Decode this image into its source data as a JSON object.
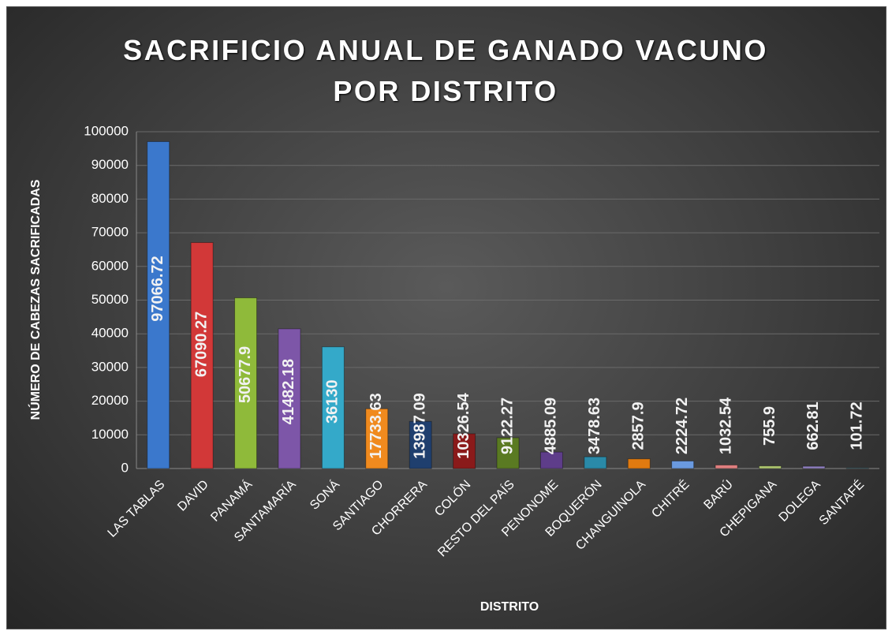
{
  "chart_data": {
    "type": "bar",
    "title": "SACRIFICIO ANUAL DE GANADO VACUNO POR DISTRITO",
    "xlabel": "DISTRITO",
    "ylabel": "NÚMERO DE CABEZAS SACRIFICADAS",
    "categories": [
      "LAS TABLAS",
      "DAVID",
      "PANAMÁ",
      "SANTAMARÍA",
      "SONÁ",
      "SANTIAGO",
      "CHORRERA",
      "COLÓN",
      "RESTO DEL PAÍS",
      "PENONOME",
      "BOQUERÓN",
      "CHANGUINOLA",
      "CHITRÉ",
      "BARÚ",
      "CHEPIGANA",
      "DOLEGA",
      "SANTAFÉ"
    ],
    "values": [
      97066.72,
      67090.27,
      50677.9,
      41482.18,
      36130,
      17733.63,
      13987.09,
      10326.54,
      9122.27,
      4885.09,
      3478.63,
      2857.9,
      2224.72,
      1032.54,
      755.9,
      662.81,
      101.72
    ],
    "colors": [
      "#3b78cc",
      "#d23838",
      "#8fba3a",
      "#7d56a8",
      "#34a9c9",
      "#f08a1e",
      "#1f3f6e",
      "#8a1a1a",
      "#5a7a22",
      "#5e3d8a",
      "#2a8aa8",
      "#e07a10",
      "#6a9ae0",
      "#e08080",
      "#b0c870",
      "#9080c0",
      "#60c0d8"
    ],
    "ylim": [
      0,
      100000
    ],
    "yticks": [
      0,
      10000,
      20000,
      30000,
      40000,
      50000,
      60000,
      70000,
      80000,
      90000,
      100000
    ],
    "grid": true
  }
}
